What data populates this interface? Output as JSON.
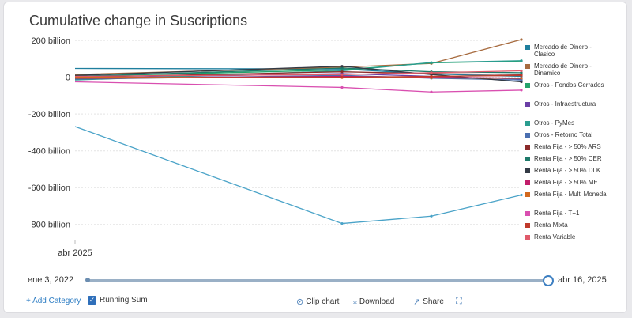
{
  "title": "Cumulative change in Suscriptions",
  "chart_data": {
    "type": "line",
    "ylim": [
      -870,
      235
    ],
    "yticks": [
      {
        "value": 200,
        "label": "200 billion"
      },
      {
        "value": 0,
        "label": "0"
      },
      {
        "value": -200,
        "label": "-200 billion"
      },
      {
        "value": -400,
        "label": "-400 billion"
      },
      {
        "value": -600,
        "label": "-600 billion"
      },
      {
        "value": -800,
        "label": "-800 billion"
      }
    ],
    "x": [
      "2025-04-01",
      "2025-04-04",
      "2025-04-09",
      "2025-04-15"
    ],
    "x_tick_label": "abr 2025",
    "series": [
      {
        "name": "Mercado de Dinero - Clasico",
        "color": "#1f7f9e",
        "values": [
          48,
          45,
          18,
          5
        ]
      },
      {
        "name": "Mercado de Dinero - Dinamico",
        "color": "#a76b3f",
        "values": [
          15,
          55,
          75,
          205
        ]
      },
      {
        "name": "Otros - Fondos Cerrados",
        "color": "#23a26b",
        "values": [
          5,
          40,
          78,
          88
        ]
      },
      {
        "name": "Otros - Infraestructura",
        "color": "#6b3fa6",
        "values": [
          -5,
          20,
          5,
          -10
        ]
      },
      {
        "name": "Otros - PyMes",
        "color": "#2a9d8f",
        "values": [
          -15,
          35,
          80,
          90
        ]
      },
      {
        "name": "Otros - Retorno Total",
        "color": "#4a6fb0",
        "values": [
          -10,
          10,
          -5,
          -15
        ]
      },
      {
        "name": "Renta Fija - > 50% ARS",
        "color": "#8b2a2a",
        "values": [
          0,
          30,
          20,
          15
        ]
      },
      {
        "name": "Renta Fija - > 50% CER",
        "color": "#1d7a6a",
        "values": [
          5,
          50,
          30,
          25
        ]
      },
      {
        "name": "Renta Fija - > 50% DLK",
        "color": "#333a45",
        "values": [
          10,
          60,
          15,
          -25
        ]
      },
      {
        "name": "Renta Fija - > 50% ME",
        "color": "#c21d6a",
        "values": [
          -5,
          5,
          0,
          -5
        ]
      },
      {
        "name": "Renta Fija - Multi Moneda",
        "color": "#d2691e",
        "values": [
          0,
          -2,
          -3,
          -5
        ]
      },
      {
        "name": "Renta Fija - T+1",
        "color": "#d94fb0",
        "values": [
          -25,
          -55,
          -80,
          -70
        ]
      },
      {
        "name": "Renta Mixta",
        "color": "#c0392b",
        "values": [
          -5,
          0,
          5,
          10
        ]
      },
      {
        "name": "Renta Variable",
        "color": "#e05a6a",
        "values": [
          5,
          15,
          25,
          35
        ]
      },
      {
        "color": "#4aa3c8",
        "values": [
          -268,
          -795,
          -755,
          -640
        ]
      }
    ]
  },
  "range": {
    "start": "ene 3, 2022",
    "end": "abr 16, 2025"
  },
  "footer": {
    "add_category": "+ Add Category",
    "running_sum": "Running Sum",
    "clip_chart": "Clip chart",
    "download": "Download",
    "share": "Share"
  }
}
